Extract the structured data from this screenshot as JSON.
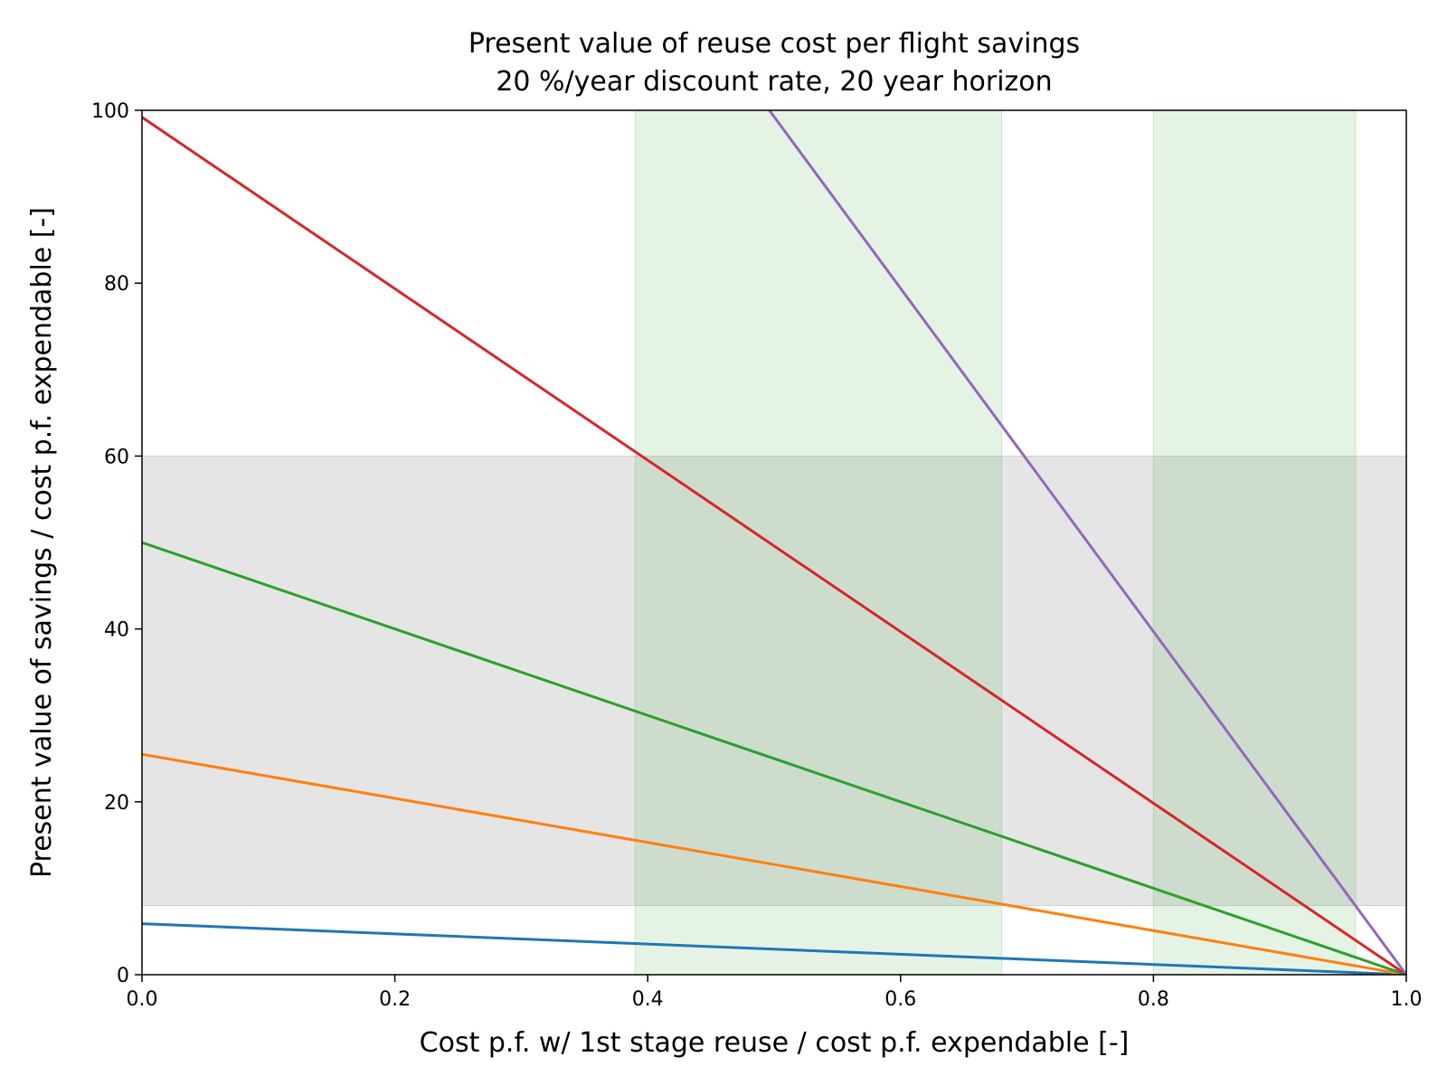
{
  "chart_data": {
    "type": "line",
    "title_line1": "Present value of reuse cost per flight savings",
    "title_line2": "20 %/year discount rate, 20 year horizon",
    "xlabel": "Cost p.f. w/ 1st stage reuse / cost p.f. expendable [-]",
    "ylabel": "Present value of savings / cost p.f. expendable [-]",
    "xlim": [
      0.0,
      1.0
    ],
    "ylim": [
      0,
      100
    ],
    "xticks": [
      "0.0",
      "0.2",
      "0.4",
      "0.6",
      "0.8",
      "1.0"
    ],
    "yticks": [
      "0",
      "20",
      "40",
      "60",
      "80",
      "100"
    ],
    "grid": false,
    "shaded_regions": [
      {
        "orientation": "horizontal",
        "from": 8,
        "to": 60,
        "color": "#bdbdbd",
        "opacity": 0.4
      },
      {
        "orientation": "vertical",
        "from": 0.39,
        "to": 0.68,
        "color": "#2ca02c",
        "opacity": 0.12
      },
      {
        "orientation": "vertical",
        "from": 0.8,
        "to": 0.96,
        "color": "#2ca02c",
        "opacity": 0.12
      }
    ],
    "series": [
      {
        "color": "#1f77b4",
        "x": [
          0.0,
          1.0
        ],
        "y": [
          5.9,
          0
        ]
      },
      {
        "color": "#ff7f0e",
        "x": [
          0.0,
          1.0
        ],
        "y": [
          25.5,
          0
        ]
      },
      {
        "color": "#2ca02c",
        "x": [
          0.0,
          1.0
        ],
        "y": [
          50,
          0
        ]
      },
      {
        "color": "#d62728",
        "x": [
          0.0,
          1.0
        ],
        "y": [
          99.2,
          0
        ]
      },
      {
        "color": "#9467bd",
        "x": [
          0.0,
          1.0
        ],
        "y": [
          198.5,
          0
        ]
      }
    ]
  }
}
